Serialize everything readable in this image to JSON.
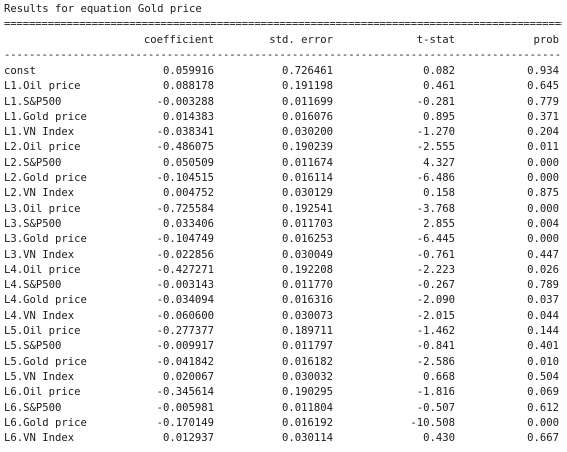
{
  "title": "Results for equation Gold price",
  "rule_heavy": "==================================================================================================",
  "rule_light": "--------------------------------------------------------------------------------------------------",
  "columns": [
    "",
    "coefficient",
    "std. error",
    "t-stat",
    "prob"
  ],
  "rows": [
    [
      "const",
      "0.059916",
      "0.726461",
      "0.082",
      "0.934"
    ],
    [
      "L1.Oil price",
      "0.088178",
      "0.191198",
      "0.461",
      "0.645"
    ],
    [
      "L1.S&P500",
      "-0.003288",
      "0.011699",
      "-0.281",
      "0.779"
    ],
    [
      "L1.Gold price",
      "0.014383",
      "0.016076",
      "0.895",
      "0.371"
    ],
    [
      "L1.VN Index",
      "-0.038341",
      "0.030200",
      "-1.270",
      "0.204"
    ],
    [
      "L2.Oil price",
      "-0.486075",
      "0.190239",
      "-2.555",
      "0.011"
    ],
    [
      "L2.S&P500",
      "0.050509",
      "0.011674",
      "4.327",
      "0.000"
    ],
    [
      "L2.Gold price",
      "-0.104515",
      "0.016114",
      "-6.486",
      "0.000"
    ],
    [
      "L2.VN Index",
      "0.004752",
      "0.030129",
      "0.158",
      "0.875"
    ],
    [
      "L3.Oil price",
      "-0.725584",
      "0.192541",
      "-3.768",
      "0.000"
    ],
    [
      "L3.S&P500",
      "0.033406",
      "0.011703",
      "2.855",
      "0.004"
    ],
    [
      "L3.Gold price",
      "-0.104749",
      "0.016253",
      "-6.445",
      "0.000"
    ],
    [
      "L3.VN Index",
      "-0.022856",
      "0.030049",
      "-0.761",
      "0.447"
    ],
    [
      "L4.Oil price",
      "-0.427271",
      "0.192208",
      "-2.223",
      "0.026"
    ],
    [
      "L4.S&P500",
      "-0.003143",
      "0.011770",
      "-0.267",
      "0.789"
    ],
    [
      "L4.Gold price",
      "-0.034094",
      "0.016316",
      "-2.090",
      "0.037"
    ],
    [
      "L4.VN Index",
      "-0.060600",
      "0.030073",
      "-2.015",
      "0.044"
    ],
    [
      "L5.Oil price",
      "-0.277377",
      "0.189711",
      "-1.462",
      "0.144"
    ],
    [
      "L5.S&P500",
      "-0.009917",
      "0.011797",
      "-0.841",
      "0.401"
    ],
    [
      "L5.Gold price",
      "-0.041842",
      "0.016182",
      "-2.586",
      "0.010"
    ],
    [
      "L5.VN Index",
      "0.020067",
      "0.030032",
      "0.668",
      "0.504"
    ],
    [
      "L6.Oil price",
      "-0.345614",
      "0.190295",
      "-1.816",
      "0.069"
    ],
    [
      "L6.S&P500",
      "-0.005981",
      "0.011804",
      "-0.507",
      "0.612"
    ],
    [
      "L6.Gold price",
      "-0.170149",
      "0.016192",
      "-10.508",
      "0.000"
    ],
    [
      "L6.VN Index",
      "0.012937",
      "0.030114",
      "0.430",
      "0.667"
    ]
  ]
}
